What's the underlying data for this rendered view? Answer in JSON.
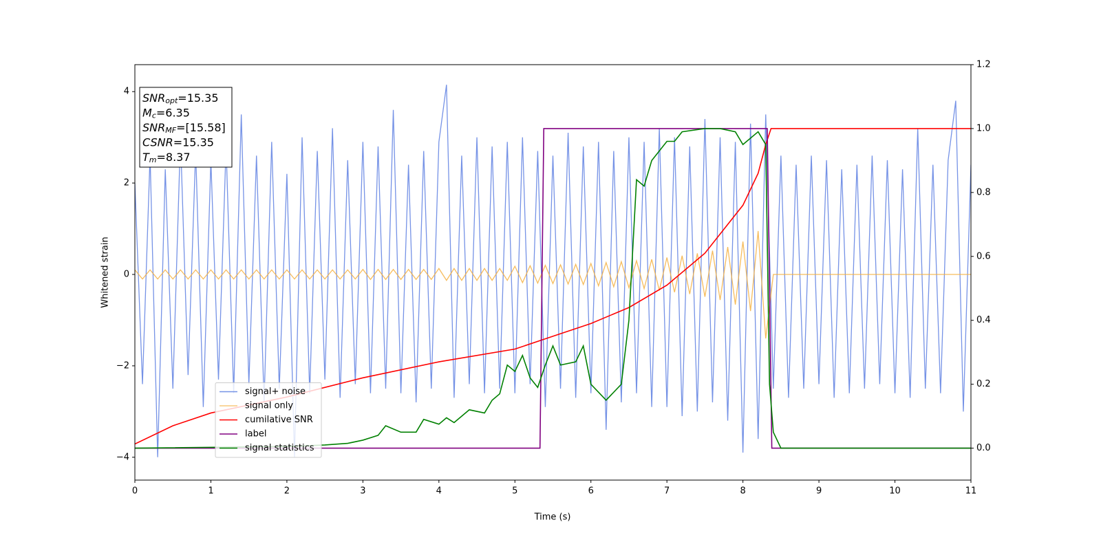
{
  "chart_data": {
    "type": "line",
    "xlabel": "Time (s)",
    "ylabel": "Whitened strain",
    "xlim": [
      0,
      11
    ],
    "xticks": [
      0,
      1,
      2,
      3,
      4,
      5,
      6,
      7,
      8,
      9,
      10,
      11
    ],
    "ylim": [
      -4.5,
      4.59
    ],
    "yticks": [
      {
        "value": -4,
        "label": "−4"
      },
      {
        "value": -2,
        "label": "−2"
      },
      0,
      2,
      4
    ],
    "y2lim": [
      -0.1,
      1.2
    ],
    "y2ticks": [
      {
        "value": 0,
        "label": "0.0"
      },
      {
        "value": 0.2,
        "label": "0.2"
      },
      {
        "value": 0.4,
        "label": "0.4"
      },
      {
        "value": 0.6,
        "label": "0.6"
      },
      {
        "value": 0.8,
        "label": "0.8"
      },
      {
        "value": 1,
        "label": "1.0"
      },
      {
        "value": 1.2,
        "label": "1.2"
      }
    ],
    "legend": "lower left",
    "annotation": [
      {
        "italic": "SNR",
        "sub": "opt",
        "text": "=15.35"
      },
      {
        "italic": "M",
        "sub": "c",
        "text": "=6.35"
      },
      {
        "italic": "SNR",
        "sub": "MF",
        "text": "=[15.58]"
      },
      {
        "italic": "CSNR",
        "text": "=15.35"
      },
      {
        "italic": "T",
        "sub": "m",
        "text": "=8.37"
      }
    ],
    "x": [
      0,
      0.1,
      0.2,
      0.3,
      0.4,
      0.5,
      0.6,
      0.7,
      0.8,
      0.9,
      1,
      1.1,
      1.2,
      1.3,
      1.4,
      1.5,
      1.6,
      1.7,
      1.8,
      1.9,
      2,
      2.1,
      2.2,
      2.3,
      2.4,
      2.5,
      2.6,
      2.7,
      2.8,
      2.9,
      3,
      3.1,
      3.2,
      3.3,
      3.4,
      3.5,
      3.6,
      3.7,
      3.8,
      3.9,
      4,
      4.1,
      4.2,
      4.3,
      4.4,
      4.5,
      4.6,
      4.7,
      4.8,
      4.9,
      5,
      5.1,
      5.2,
      5.3,
      5.4,
      5.5,
      5.6,
      5.7,
      5.8,
      5.9,
      6,
      6.1,
      6.2,
      6.3,
      6.4,
      6.5,
      6.6,
      6.7,
      6.8,
      6.9,
      7,
      7.1,
      7.2,
      7.3,
      7.4,
      7.5,
      7.6,
      7.7,
      7.8,
      7.9,
      8,
      8.1,
      8.2,
      8.3,
      8.4,
      8.5,
      8.6,
      8.7,
      8.8,
      8.9,
      9,
      9.1,
      9.2,
      9.3,
      9.4,
      9.5,
      9.6,
      9.7,
      9.8,
      9.9,
      10,
      10.1,
      10.2,
      10.3,
      10.4,
      10.5,
      10.6,
      10.7,
      10.8,
      10.9,
      11
    ],
    "series": [
      {
        "name": "signal+ noise",
        "color": "#7592e6",
        "values": [
          2.0,
          -2.4,
          2.6,
          -4.0,
          2.3,
          -2.5,
          3.0,
          -2.2,
          2.7,
          -2.9,
          2.5,
          -2.3,
          2.8,
          -2.6,
          3.5,
          -2.4,
          2.6,
          -2.8,
          2.9,
          -2.5,
          2.2,
          -4.0,
          3.0,
          -2.6,
          2.7,
          -2.3,
          3.2,
          -2.7,
          2.5,
          -2.4,
          2.9,
          -2.6,
          2.8,
          -2.5,
          3.6,
          -2.6,
          2.4,
          -2.8,
          2.7,
          -2.5,
          2.9,
          4.15,
          -2.7,
          2.6,
          -2.4,
          3.0,
          -2.6,
          2.8,
          -2.5,
          2.9,
          -2.6,
          3.0,
          -2.4,
          2.7,
          -2.9,
          2.6,
          -2.5,
          3.1,
          -2.7,
          2.8,
          -2.6,
          2.9,
          -3.4,
          2.7,
          -2.8,
          3.0,
          -2.6,
          2.9,
          -2.9,
          3.2,
          -2.9,
          3.0,
          -3.1,
          2.8,
          -3.0,
          3.4,
          -2.8,
          3.0,
          -3.2,
          2.9,
          -3.9,
          3.3,
          -3.6,
          3.5,
          -2.5,
          2.6,
          -2.7,
          2.4,
          -2.5,
          2.6,
          -2.4,
          2.5,
          -2.7,
          2.3,
          -2.6,
          2.4,
          -2.5,
          2.6,
          -2.4,
          2.5,
          -2.6,
          2.3,
          -2.7,
          3.2,
          -2.5,
          2.4,
          -2.6,
          2.5,
          3.8,
          -3.0,
          2.4
        ]
      },
      {
        "name": "signal only",
        "color": "#f5b041",
        "values": [
          0.1,
          -0.1,
          0.1,
          -0.1,
          0.1,
          -0.1,
          0.1,
          -0.1,
          0.1,
          -0.1,
          0.1,
          -0.1,
          0.1,
          -0.1,
          0.1,
          -0.1,
          0.1,
          -0.1,
          0.1,
          -0.1,
          0.1,
          -0.1,
          0.1,
          -0.1,
          0.1,
          -0.1,
          0.1,
          -0.1,
          0.1,
          -0.1,
          0.11,
          -0.11,
          0.11,
          -0.11,
          0.11,
          -0.11,
          0.11,
          -0.11,
          0.11,
          -0.11,
          0.13,
          -0.13,
          0.13,
          -0.13,
          0.13,
          -0.13,
          0.13,
          -0.13,
          0.13,
          -0.13,
          0.18,
          -0.18,
          0.19,
          -0.19,
          0.2,
          -0.2,
          0.21,
          -0.21,
          0.22,
          -0.22,
          0.24,
          -0.25,
          0.26,
          -0.27,
          0.28,
          -0.29,
          0.3,
          -0.31,
          0.33,
          -0.35,
          0.37,
          -0.39,
          0.41,
          -0.43,
          0.46,
          -0.49,
          0.52,
          -0.56,
          0.6,
          -0.66,
          0.72,
          -0.8,
          0.95,
          -1.4,
          0,
          0,
          0,
          0,
          0,
          0,
          0,
          0,
          0,
          0,
          0,
          0,
          0,
          0,
          0,
          0,
          0,
          0,
          0,
          0,
          0,
          0,
          0,
          0,
          0,
          0,
          0
        ]
      },
      {
        "name": "cumilative SNR",
        "color": "#ff0000",
        "axis": "y2",
        "x": [
          0,
          0.5,
          1,
          2,
          3,
          4,
          5,
          5.5,
          6,
          6.5,
          7,
          7.5,
          8,
          8.2,
          8.3,
          8.37,
          11
        ],
        "values": [
          0.013,
          0.07,
          0.11,
          0.16,
          0.22,
          0.27,
          0.31,
          0.35,
          0.39,
          0.44,
          0.51,
          0.61,
          0.76,
          0.86,
          0.95,
          1.0,
          1.0
        ]
      },
      {
        "name": "label",
        "color": "#800080",
        "axis": "y2",
        "x": [
          0,
          5.33,
          5.38,
          8.32,
          8.38,
          11
        ],
        "values": [
          0,
          0,
          1,
          1,
          0,
          0
        ]
      },
      {
        "name": "signal statistics",
        "color": "#008000",
        "axis": "y2",
        "x": [
          0,
          2,
          2.5,
          2.8,
          3,
          3.2,
          3.3,
          3.5,
          3.7,
          3.8,
          4,
          4.1,
          4.2,
          4.4,
          4.6,
          4.7,
          4.8,
          4.9,
          5,
          5.1,
          5.2,
          5.3,
          5.4,
          5.5,
          5.6,
          5.8,
          5.9,
          6,
          6.2,
          6.4,
          6.5,
          6.6,
          6.7,
          6.8,
          7,
          7.1,
          7.2,
          7.5,
          7.7,
          7.9,
          8,
          8.2,
          8.3,
          8.35,
          8.4,
          8.5,
          11
        ],
        "values": [
          0,
          0.005,
          0.01,
          0.015,
          0.025,
          0.04,
          0.07,
          0.05,
          0.05,
          0.09,
          0.075,
          0.095,
          0.08,
          0.12,
          0.11,
          0.15,
          0.17,
          0.26,
          0.24,
          0.29,
          0.22,
          0.19,
          0.26,
          0.32,
          0.26,
          0.27,
          0.32,
          0.2,
          0.15,
          0.2,
          0.4,
          0.84,
          0.82,
          0.9,
          0.96,
          0.96,
          0.99,
          1.0,
          1.0,
          0.99,
          0.95,
          0.99,
          0.95,
          0.2,
          0.05,
          0,
          0
        ]
      }
    ]
  }
}
